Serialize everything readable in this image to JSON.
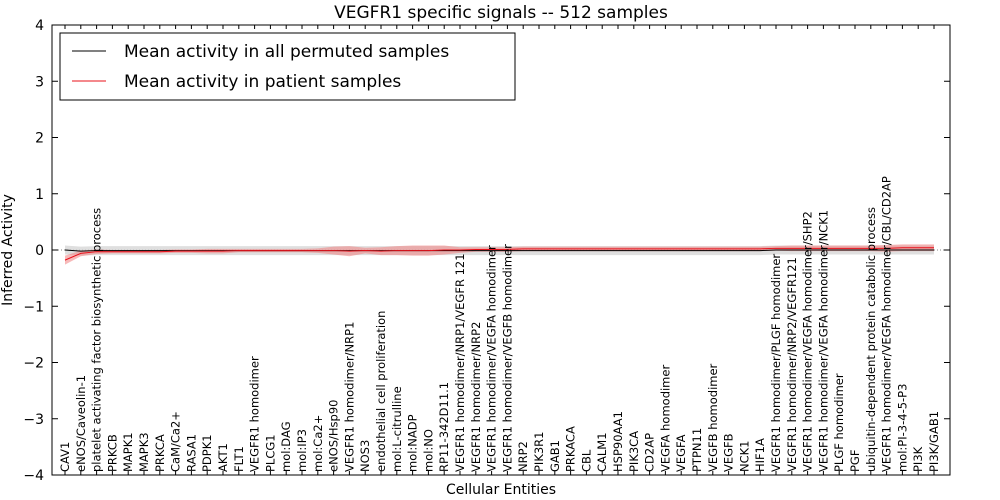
{
  "chart_data": {
    "type": "line",
    "title": "VEGFR1 specific signals -- 512 samples",
    "xlabel": "Cellular Entities",
    "ylabel": "Inferred Activity",
    "ylim": [
      -4,
      4
    ],
    "yticks": [
      -4,
      -3,
      -2,
      -1,
      0,
      1,
      2,
      3,
      4
    ],
    "grid": false,
    "legend_position": "top-left",
    "categories": [
      "CAV1",
      "eNOS/Caveolin-1",
      "platelet activating factor biosynthetic process",
      "PRKCB",
      "MAPK1",
      "MAPK3",
      "PRKCA",
      "CaM/Ca2+",
      "RASA1",
      "PDPK1",
      "AKT1",
      "FLT1",
      "VEGFR1 homodimer",
      "PLCG1",
      "mol:DAG",
      "mol:IP3",
      "mol:Ca2+",
      "eNOS/Hsp90",
      "VEGFR1 homodimer/NRP1",
      "NOS3",
      "endothelial cell proliferation",
      "mol:L-citrulline",
      "mol:NADP",
      "mol:NO",
      "RP11-342D11.1",
      "VEGFR1 homodimer/NRP1/VEGFR 121",
      "VEGFR1 homodimer/NRP2",
      "VEGFR1 homodimer/VEGFA homodimer",
      "VEGFR1 homodimer/VEGFB homodimer",
      "NRP2",
      "PIK3R1",
      "GAB1",
      "PRKACA",
      "CBL",
      "CALM1",
      "HSP90AA1",
      "PIK3CA",
      "CD2AP",
      "VEGFA homodimer",
      "VEGFA",
      "PTPN11",
      "VEGFB homodimer",
      "VEGFB",
      "NCK1",
      "HIF1A",
      "VEGFR1 homodimer/PLGF homodimer",
      "VEGFR1 homodimer/NRP2/VEGFR121",
      "VEGFR1 homodimer/VEGFA homodimer/SHP2",
      "VEGFR1 homodimer/VEGFA homodimer/NCK1",
      "PLGF homodimer",
      "PGF",
      "ubiquitin-dependent protein catabolic process",
      "VEGFR1 homodimer/VEGFA homodimer/CBL/CD2AP",
      "mol:PI-3-4-5-P3",
      "PI3K",
      "PI3K/GAB1"
    ],
    "series": [
      {
        "name": "Mean activity in all permuted samples",
        "color": "#000000",
        "values": [
          0.0,
          -0.02,
          -0.01,
          -0.01,
          -0.01,
          -0.01,
          -0.01,
          -0.01,
          -0.01,
          -0.01,
          -0.01,
          -0.01,
          -0.01,
          -0.01,
          -0.01,
          -0.01,
          -0.01,
          -0.01,
          -0.01,
          -0.01,
          -0.01,
          -0.01,
          -0.01,
          -0.01,
          -0.01,
          -0.01,
          -0.01,
          -0.01,
          -0.01,
          -0.01,
          -0.01,
          -0.01,
          -0.01,
          -0.01,
          -0.01,
          -0.01,
          -0.01,
          -0.01,
          -0.01,
          -0.01,
          -0.01,
          -0.01,
          -0.01,
          -0.01,
          -0.01,
          0.0,
          0.0,
          0.0,
          0.0,
          0.0,
          0.0,
          0.0,
          0.0,
          0.0,
          0.0,
          0.0
        ],
        "band": 0.08,
        "band_color": "#d4d4d4"
      },
      {
        "name": "Mean activity in patient samples",
        "color": "#e8101a",
        "values": [
          -0.18,
          -0.06,
          -0.03,
          -0.03,
          -0.03,
          -0.03,
          -0.03,
          -0.02,
          -0.02,
          -0.02,
          -0.02,
          -0.01,
          -0.01,
          -0.01,
          -0.01,
          -0.01,
          -0.01,
          -0.01,
          -0.02,
          -0.01,
          -0.02,
          -0.01,
          -0.01,
          -0.01,
          0.0,
          0.0,
          0.01,
          0.01,
          0.01,
          0.02,
          0.02,
          0.02,
          0.02,
          0.02,
          0.02,
          0.02,
          0.02,
          0.02,
          0.02,
          0.02,
          0.02,
          0.02,
          0.02,
          0.02,
          0.02,
          0.03,
          0.03,
          0.03,
          0.03,
          0.03,
          0.03,
          0.03,
          0.03,
          0.04,
          0.04,
          0.04
        ],
        "band": [
          0.08,
          0.05,
          0.04,
          0.03,
          0.03,
          0.03,
          0.03,
          0.03,
          0.03,
          0.04,
          0.04,
          0.03,
          0.03,
          0.03,
          0.03,
          0.03,
          0.04,
          0.07,
          0.09,
          0.05,
          0.07,
          0.08,
          0.09,
          0.09,
          0.08,
          0.05,
          0.04,
          0.04,
          0.04,
          0.04,
          0.04,
          0.04,
          0.04,
          0.04,
          0.04,
          0.04,
          0.04,
          0.04,
          0.04,
          0.04,
          0.04,
          0.04,
          0.04,
          0.04,
          0.04,
          0.04,
          0.05,
          0.05,
          0.05,
          0.05,
          0.05,
          0.05,
          0.06,
          0.06,
          0.06,
          0.06
        ],
        "band_color": "#f08080"
      }
    ]
  }
}
